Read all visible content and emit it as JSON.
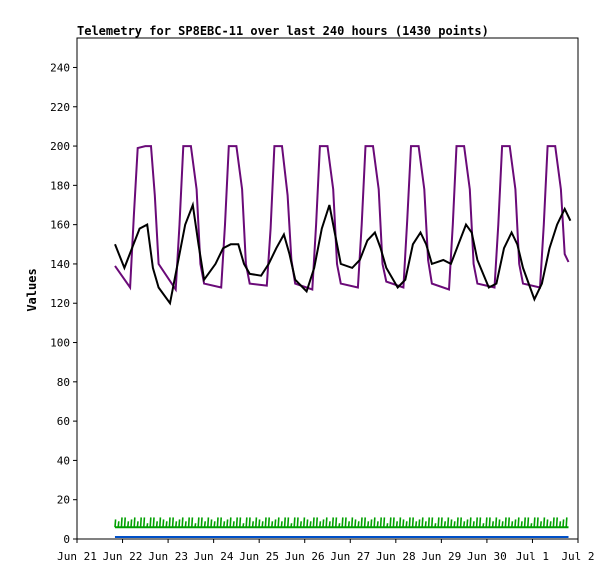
{
  "chart_data": {
    "type": "line",
    "title": "Telemetry for SP8EBC-11 over last 240 hours (1430 points)",
    "ylabel": "Values",
    "xlabel": "",
    "ylim": [
      0,
      255
    ],
    "xlim": [
      "2021-06-21T00:00",
      "2021-07-02T00:00"
    ],
    "yticks": [
      0,
      20,
      40,
      60,
      80,
      100,
      120,
      140,
      160,
      180,
      200,
      220,
      240
    ],
    "xticks": [
      {
        "t": "2021-06-21T00:00",
        "label": "Jun 21"
      },
      {
        "t": "2021-06-22T00:00",
        "label": "Jun 22"
      },
      {
        "t": "2021-06-23T00:00",
        "label": "Jun 23"
      },
      {
        "t": "2021-06-24T00:00",
        "label": "Jun 24"
      },
      {
        "t": "2021-06-25T00:00",
        "label": "Jun 25"
      },
      {
        "t": "2021-06-26T00:00",
        "label": "Jun 26"
      },
      {
        "t": "2021-06-27T00:00",
        "label": "Jun 27"
      },
      {
        "t": "2021-06-28T00:00",
        "label": "Jun 28"
      },
      {
        "t": "2021-06-29T00:00",
        "label": "Jun 29"
      },
      {
        "t": "2021-06-30T00:00",
        "label": "Jun 30"
      },
      {
        "t": "2021-07-01T00:00",
        "label": "Jul 1"
      },
      {
        "t": "2021-07-02T00:00",
        "label": "Jul 2"
      }
    ],
    "grid": false,
    "legend": "none",
    "series": [
      {
        "color": "#6a0a78",
        "x": [
          "2021-06-21T20:00",
          "2021-06-22T04:00",
          "2021-06-22T06:00",
          "2021-06-22T08:00",
          "2021-06-22T12:00",
          "2021-06-22T15:00",
          "2021-06-22T17:00",
          "2021-06-22T19:00",
          "2021-06-23T04:00",
          "2021-06-23T06:00",
          "2021-06-23T08:00",
          "2021-06-23T12:00",
          "2021-06-23T15:00",
          "2021-06-23T17:00",
          "2021-06-23T19:00",
          "2021-06-24T04:00",
          "2021-06-24T06:00",
          "2021-06-24T08:00",
          "2021-06-24T12:00",
          "2021-06-24T15:00",
          "2021-06-24T17:00",
          "2021-06-24T19:00",
          "2021-06-25T04:00",
          "2021-06-25T06:00",
          "2021-06-25T08:00",
          "2021-06-25T12:00",
          "2021-06-25T15:00",
          "2021-06-25T17:00",
          "2021-06-25T19:00",
          "2021-06-26T04:00",
          "2021-06-26T06:00",
          "2021-06-26T08:00",
          "2021-06-26T12:00",
          "2021-06-26T15:00",
          "2021-06-26T17:00",
          "2021-06-26T19:00",
          "2021-06-27T04:00",
          "2021-06-27T06:00",
          "2021-06-27T08:00",
          "2021-06-27T12:00",
          "2021-06-27T15:00",
          "2021-06-27T17:00",
          "2021-06-27T19:00",
          "2021-06-28T04:00",
          "2021-06-28T06:00",
          "2021-06-28T08:00",
          "2021-06-28T12:00",
          "2021-06-28T15:00",
          "2021-06-28T17:00",
          "2021-06-28T19:00",
          "2021-06-29T04:00",
          "2021-06-29T06:00",
          "2021-06-29T08:00",
          "2021-06-29T12:00",
          "2021-06-29T15:00",
          "2021-06-29T17:00",
          "2021-06-29T19:00",
          "2021-06-30T04:00",
          "2021-06-30T06:00",
          "2021-06-30T08:00",
          "2021-06-30T12:00",
          "2021-06-30T15:00",
          "2021-06-30T17:00",
          "2021-06-30T19:00",
          "2021-07-01T04:00",
          "2021-07-01T06:00",
          "2021-07-01T08:00",
          "2021-07-01T12:00",
          "2021-07-01T15:00",
          "2021-07-01T17:00",
          "2021-07-01T19:00"
        ],
        "values": [
          139,
          128,
          165,
          199,
          200,
          200,
          175,
          140,
          127,
          160,
          200,
          200,
          178,
          140,
          130,
          128,
          160,
          200,
          200,
          178,
          140,
          130,
          129,
          158,
          200,
          200,
          175,
          142,
          130,
          127,
          160,
          200,
          200,
          178,
          140,
          130,
          128,
          160,
          200,
          200,
          178,
          140,
          131,
          128,
          162,
          200,
          200,
          178,
          142,
          130,
          127,
          160,
          200,
          200,
          178,
          140,
          130,
          128,
          160,
          200,
          200,
          178,
          140,
          130,
          128,
          160,
          200,
          200,
          178,
          145,
          141
        ]
      },
      {
        "color": "#000000",
        "x": [
          "2021-06-21T20:00",
          "2021-06-22T01:00",
          "2021-06-22T05:00",
          "2021-06-22T09:00",
          "2021-06-22T13:00",
          "2021-06-22T16:00",
          "2021-06-22T19:00",
          "2021-06-23T01:00",
          "2021-06-23T05:00",
          "2021-06-23T09:00",
          "2021-06-23T13:00",
          "2021-06-23T16:00",
          "2021-06-23T19:00",
          "2021-06-24T01:00",
          "2021-06-24T05:00",
          "2021-06-24T09:00",
          "2021-06-24T13:00",
          "2021-06-24T16:00",
          "2021-06-24T19:00",
          "2021-06-25T01:00",
          "2021-06-25T05:00",
          "2021-06-25T09:00",
          "2021-06-25T13:00",
          "2021-06-25T16:00",
          "2021-06-25T19:00",
          "2021-06-26T01:00",
          "2021-06-26T05:00",
          "2021-06-26T09:00",
          "2021-06-26T13:00",
          "2021-06-26T16:00",
          "2021-06-26T19:00",
          "2021-06-27T01:00",
          "2021-06-27T05:00",
          "2021-06-27T09:00",
          "2021-06-27T13:00",
          "2021-06-27T16:00",
          "2021-06-27T19:00",
          "2021-06-28T01:00",
          "2021-06-28T05:00",
          "2021-06-28T09:00",
          "2021-06-28T13:00",
          "2021-06-28T16:00",
          "2021-06-28T19:00",
          "2021-06-29T01:00",
          "2021-06-29T05:00",
          "2021-06-29T09:00",
          "2021-06-29T13:00",
          "2021-06-29T16:00",
          "2021-06-29T19:00",
          "2021-06-30T01:00",
          "2021-06-30T05:00",
          "2021-06-30T09:00",
          "2021-06-30T13:00",
          "2021-06-30T16:00",
          "2021-06-30T19:00",
          "2021-07-01T01:00",
          "2021-07-01T05:00",
          "2021-07-01T09:00",
          "2021-07-01T13:00",
          "2021-07-01T17:00",
          "2021-07-01T20:00"
        ],
        "values": [
          150,
          138,
          148,
          158,
          160,
          138,
          128,
          120,
          140,
          160,
          170,
          150,
          132,
          140,
          148,
          150,
          150,
          140,
          135,
          134,
          140,
          148,
          155,
          145,
          132,
          126,
          138,
          158,
          170,
          155,
          140,
          138,
          142,
          152,
          156,
          148,
          138,
          128,
          132,
          150,
          156,
          150,
          140,
          142,
          140,
          150,
          160,
          156,
          142,
          128,
          130,
          148,
          156,
          150,
          138,
          122,
          130,
          148,
          160,
          168,
          162
        ]
      },
      {
        "color": "#00a000",
        "baseline": 6,
        "peak": 11
      },
      {
        "color": "#0050c8",
        "constant": 1
      }
    ]
  }
}
